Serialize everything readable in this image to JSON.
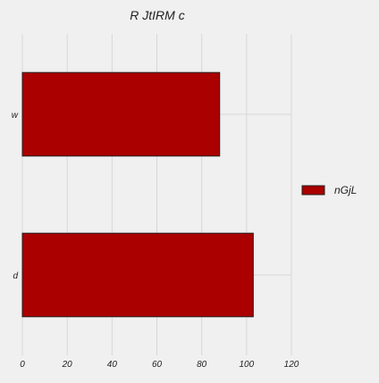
{
  "chart_data": {
    "type": "bar",
    "orientation": "horizontal",
    "title": "R JtIRM c",
    "xlabel": "",
    "ylabel": "",
    "categories": [
      "w",
      "d"
    ],
    "series": [
      {
        "name": "nGjL",
        "values": [
          88,
          103
        ]
      }
    ],
    "xlim": [
      0,
      120
    ],
    "xticks": [
      "0",
      "20",
      "40",
      "60",
      "80",
      "100",
      "120"
    ],
    "grid": true,
    "legend_position": "right",
    "colors": {
      "bar_fill": "#aa0000",
      "bar_edge": "#222222",
      "grid": "#d7d7d7",
      "background": "#f0f0f0"
    }
  }
}
